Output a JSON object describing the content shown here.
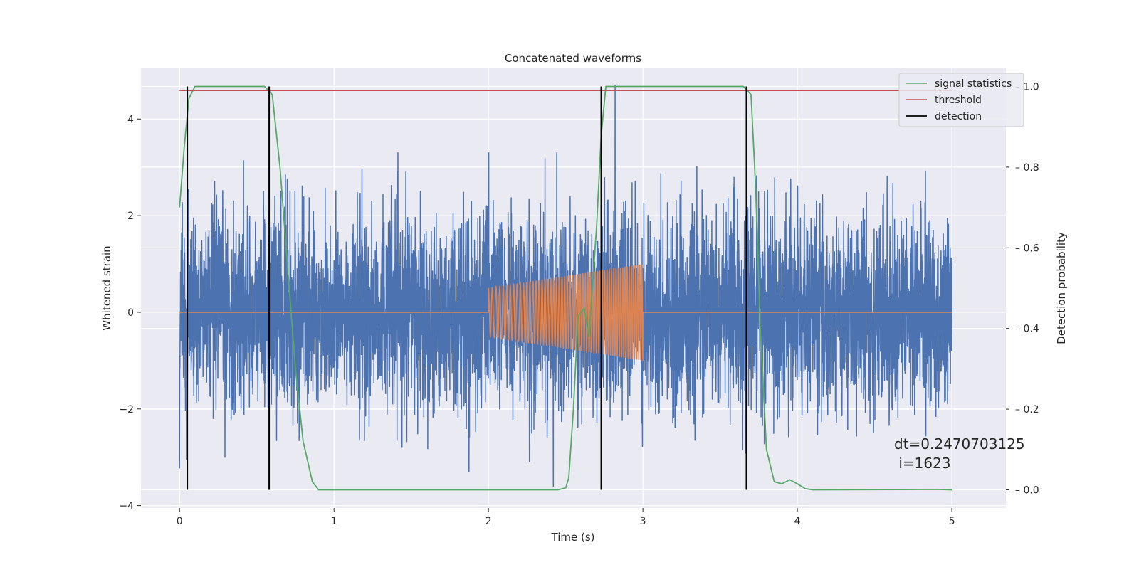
{
  "chart_data": {
    "type": "line",
    "title": "Concatenated waveforms",
    "xlabel": "Time (s)",
    "ylabel": "Whitened strain",
    "y2label": "Detection probability",
    "xlim": [
      -0.25,
      5.35
    ],
    "ylim": [
      -4.05,
      5.05
    ],
    "y2lim": [
      -0.045,
      1.045
    ],
    "xticks": [
      0,
      1,
      2,
      3,
      4,
      5
    ],
    "yticks": [
      -4,
      -2,
      0,
      2,
      4
    ],
    "y2ticks": [
      0.0,
      0.2,
      0.4,
      0.6,
      0.8,
      1.0
    ],
    "xtick_labels": [
      "0",
      "1",
      "2",
      "3",
      "4",
      "5"
    ],
    "ytick_labels": [
      "−4",
      "−2",
      "0",
      "2",
      "4"
    ],
    "y2tick_labels": [
      "0.0",
      "0.2",
      "0.4",
      "0.6",
      "0.8",
      "1.0"
    ],
    "grid": true,
    "legend_position": "top-right",
    "legend": [
      {
        "label": "signal statistics",
        "color": "#55a868"
      },
      {
        "label": "threshold",
        "color": "#c44e52"
      },
      {
        "label": "detection",
        "color": "#000000"
      }
    ],
    "colors": {
      "noise": "#4c72b0",
      "injection": "#dd8452",
      "signal_statistics": "#55a868",
      "threshold": "#c44e52",
      "detection": "#000000",
      "plot_background": "#eaeaf2",
      "grid": "#ffffff"
    },
    "series": [
      {
        "role": "whitened-strain noise",
        "axis": "left",
        "x_range": [
          0,
          5
        ],
        "typical_amplitude": 1.0,
        "max_spike": 4.7,
        "min_spike": -3.6
      },
      {
        "role": "injected chirp",
        "axis": "left",
        "x_range": [
          2.0,
          3.0
        ],
        "amplitude_start": 0.5,
        "amplitude_end": 1.0,
        "baseline": 0
      },
      {
        "name": "signal statistics",
        "axis": "right",
        "points": [
          [
            0.0,
            0.7
          ],
          [
            0.03,
            0.85
          ],
          [
            0.06,
            0.97
          ],
          [
            0.1,
            1.0
          ],
          [
            0.55,
            1.0
          ],
          [
            0.6,
            0.98
          ],
          [
            0.65,
            0.8
          ],
          [
            0.7,
            0.55
          ],
          [
            0.75,
            0.3
          ],
          [
            0.8,
            0.12
          ],
          [
            0.86,
            0.02
          ],
          [
            0.9,
            0.0
          ],
          [
            2.45,
            0.0
          ],
          [
            2.5,
            0.005
          ],
          [
            2.52,
            0.03
          ],
          [
            2.55,
            0.2
          ],
          [
            2.58,
            0.43
          ],
          [
            2.62,
            0.45
          ],
          [
            2.65,
            0.38
          ],
          [
            2.7,
            0.65
          ],
          [
            2.73,
            0.88
          ],
          [
            2.76,
            1.0
          ],
          [
            3.65,
            1.0
          ],
          [
            3.7,
            0.98
          ],
          [
            3.73,
            0.75
          ],
          [
            3.76,
            0.4
          ],
          [
            3.8,
            0.1
          ],
          [
            3.85,
            0.02
          ],
          [
            3.9,
            0.015
          ],
          [
            3.95,
            0.025
          ],
          [
            4.0,
            0.015
          ],
          [
            4.05,
            0.003
          ],
          [
            4.1,
            0.0
          ],
          [
            4.9,
            0.001
          ],
          [
            5.0,
            0.0
          ]
        ]
      },
      {
        "name": "threshold",
        "axis": "right",
        "value": 0.99,
        "x_range": [
          0,
          5
        ]
      },
      {
        "name": "detection",
        "axis": "right",
        "x": [
          0.05,
          0.58,
          2.73,
          3.67
        ],
        "y_range": [
          0,
          1
        ]
      }
    ],
    "annotation": {
      "line1": "dt=0.2470703125",
      "line2": " i=1623"
    }
  }
}
